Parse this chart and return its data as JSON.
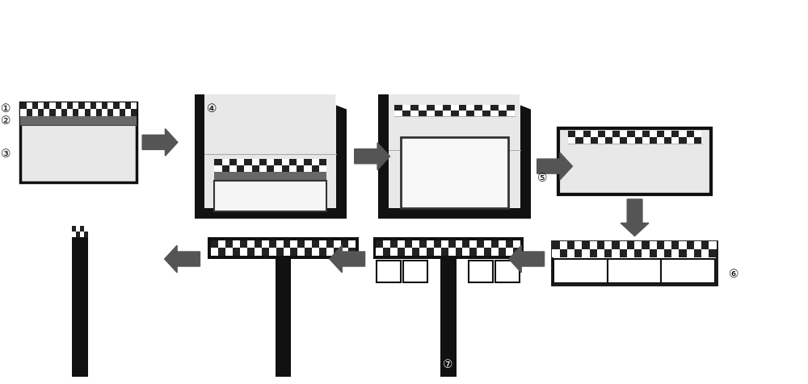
{
  "bg": "#ffffff",
  "dark": "#111111",
  "checker_dark": "#222222",
  "checker_light": "#ffffff",
  "gray_layer": "#686868",
  "dotted_fill": "#e8e8e8",
  "arrow_color": "#555555",
  "label_color": "#111111",
  "circ_nums": [
    "①",
    "②",
    "③",
    "④",
    "⑤",
    "⑥",
    "⑦"
  ]
}
